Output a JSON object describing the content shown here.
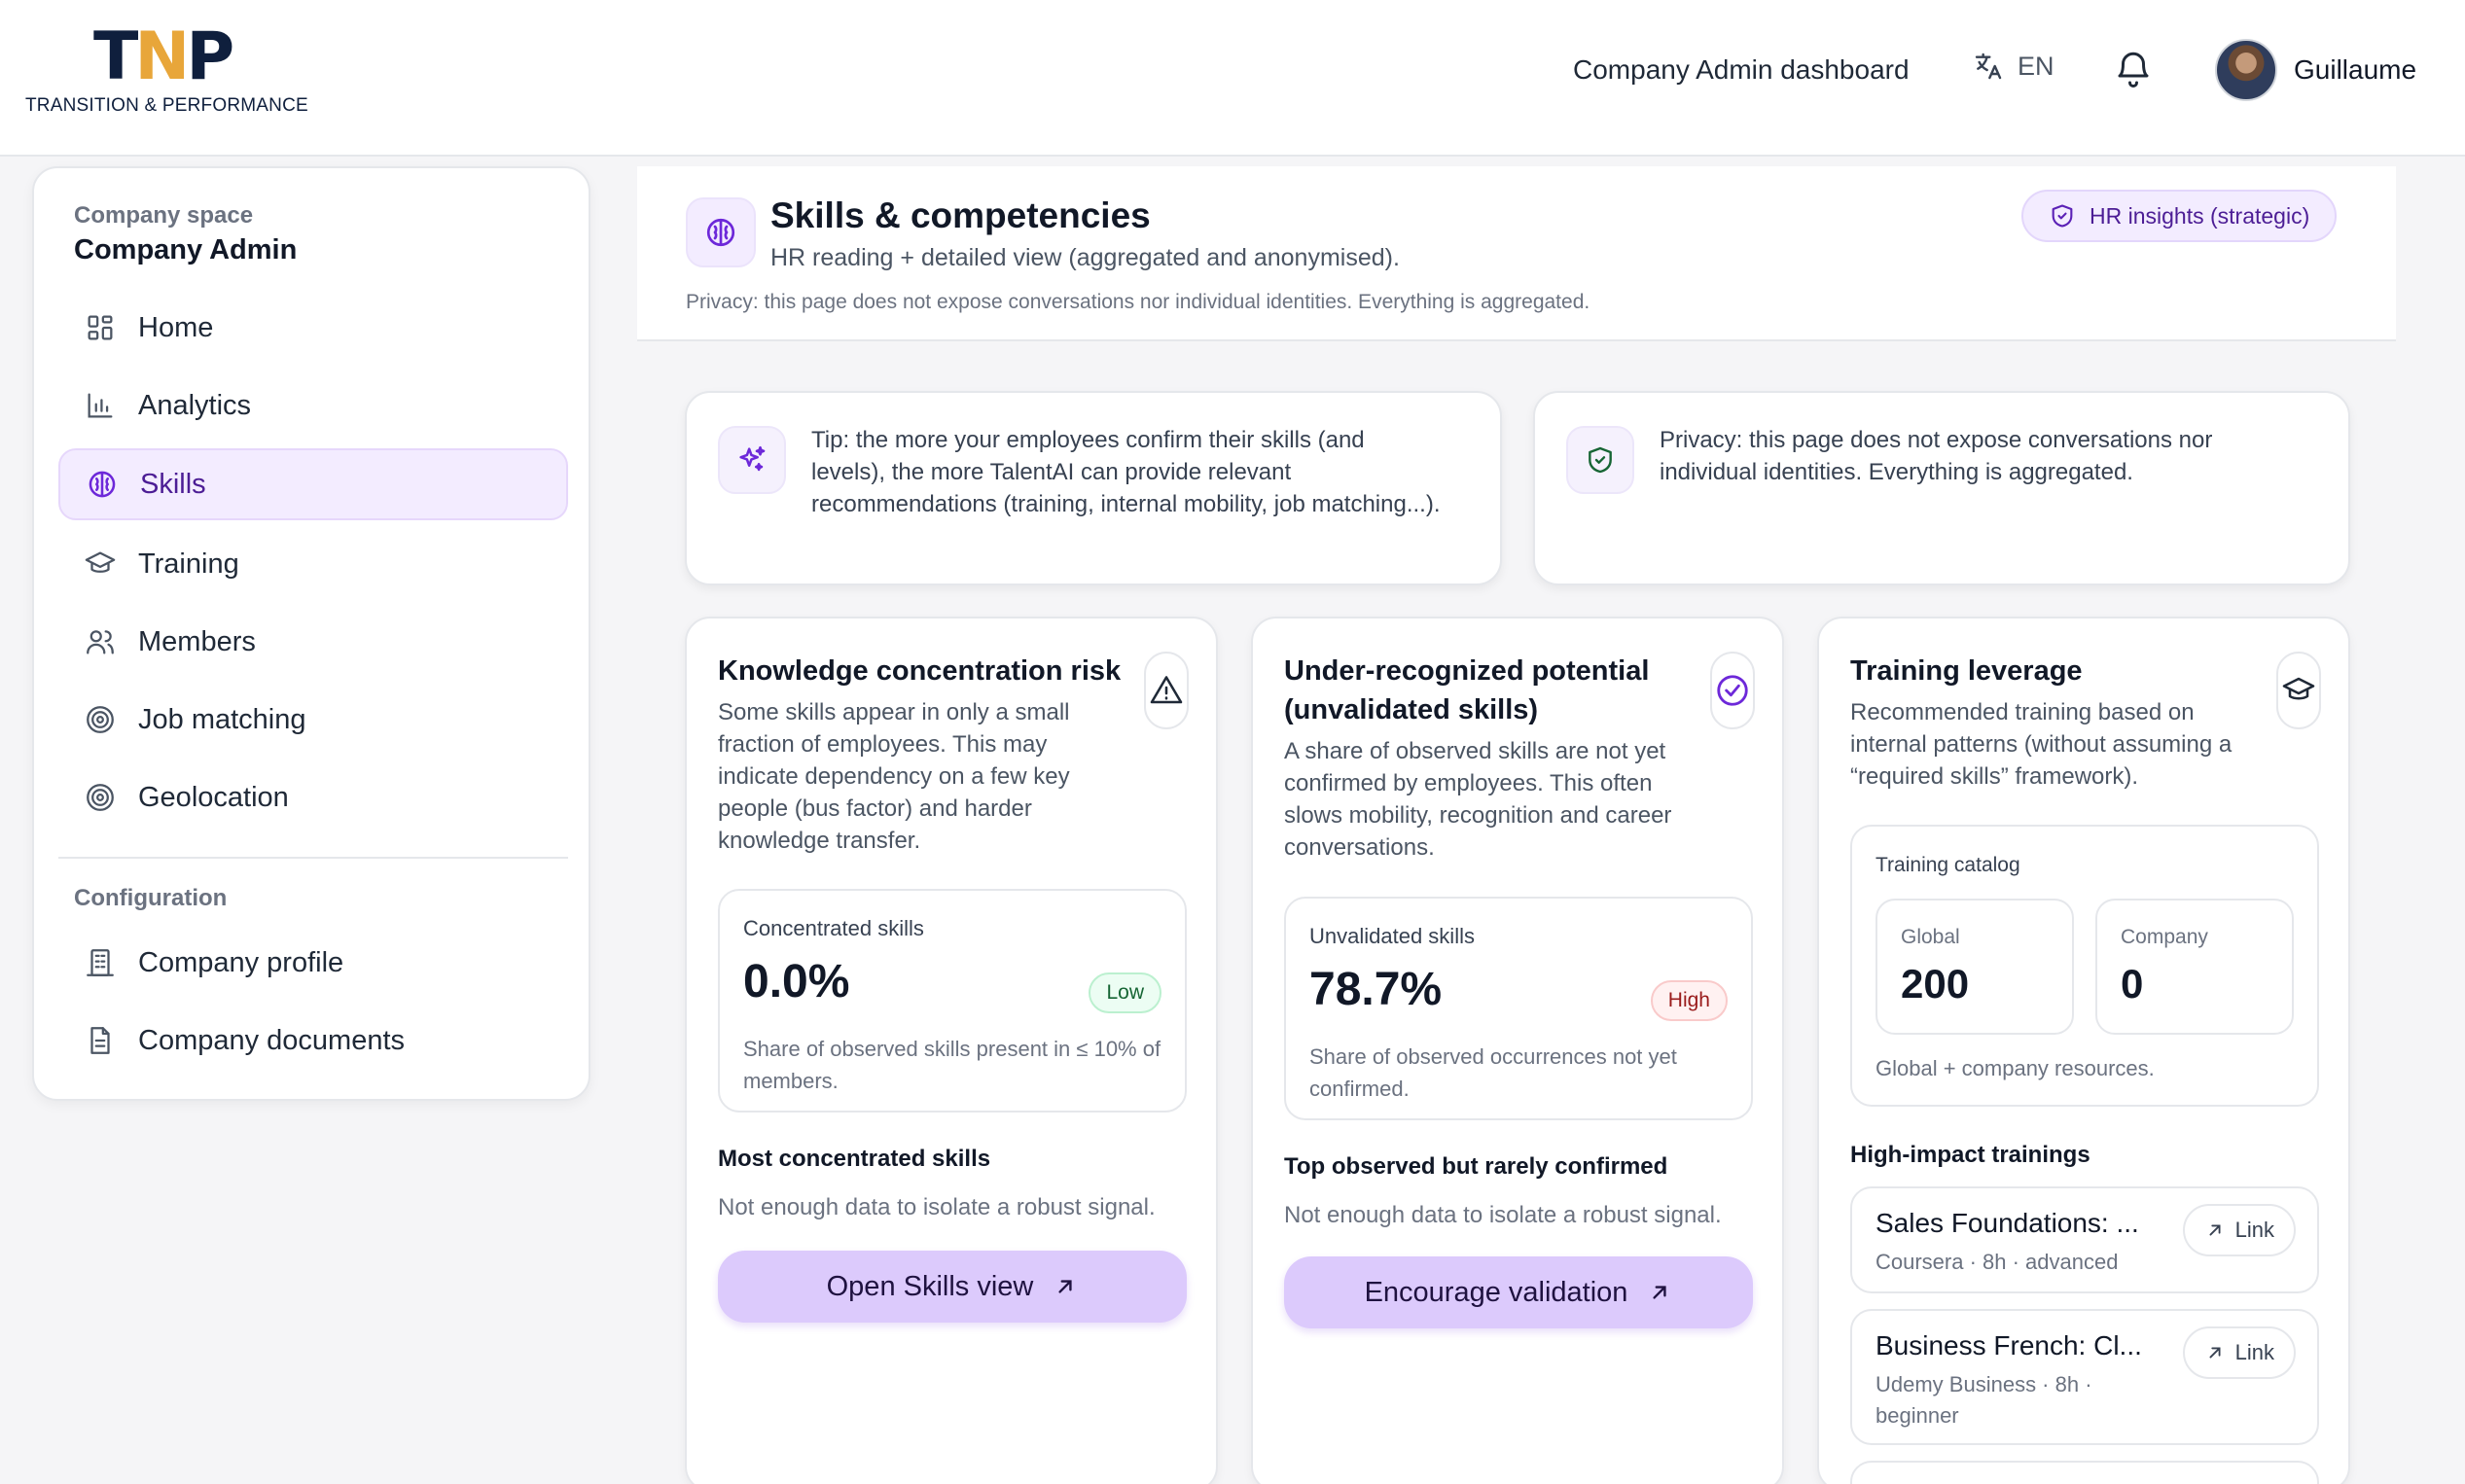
{
  "header": {
    "logo_mark": "TNP",
    "logo_text": "TRANSITION & PERFORMANCE",
    "dashboard_link": "Company Admin dashboard",
    "language": "EN",
    "user_name": "Guillaume"
  },
  "sidebar": {
    "space_label": "Company space",
    "company_name": "Company Admin",
    "items": [
      {
        "label": "Home",
        "icon": "grid-icon"
      },
      {
        "label": "Analytics",
        "icon": "bar-chart-icon"
      },
      {
        "label": "Skills",
        "icon": "brain-icon",
        "active": true
      },
      {
        "label": "Training",
        "icon": "graduation-cap-icon"
      },
      {
        "label": "Members",
        "icon": "users-icon"
      },
      {
        "label": "Job matching",
        "icon": "target-icon"
      },
      {
        "label": "Geolocation",
        "icon": "target-icon"
      }
    ],
    "config_label": "Configuration",
    "config_items": [
      {
        "label": "Company profile",
        "icon": "building-icon"
      },
      {
        "label": "Company documents",
        "icon": "document-icon"
      }
    ]
  },
  "page": {
    "title": "Skills & competencies",
    "subtitle": "HR reading + detailed view (aggregated and anonymised).",
    "privacy_note": "Privacy: this page does not expose conversations nor individual identities. Everything is aggregated.",
    "badge": "HR insights (strategic)"
  },
  "tips": {
    "tip": "Tip: the more your employees confirm their skills (and levels), the more TalentAI can provide relevant recommendations (training, internal mobility, job matching...).",
    "privacy": "Privacy: this page does not expose conversations nor individual identities. Everything is aggregated."
  },
  "cards": {
    "concentration": {
      "title": "Knowledge concentration risk",
      "description": "Some skills appear in only a small fraction of employees. This may indicate dependency on a few key people (bus factor) and harder knowledge transfer.",
      "metric_label": "Concentrated skills",
      "metric_value": "0.0%",
      "metric_level": "Low",
      "metric_help": "Share of observed skills present in ≤ 10% of members.",
      "section_title": "Most concentrated skills",
      "section_note": "Not enough data to isolate a robust signal.",
      "cta": "Open Skills view"
    },
    "potential": {
      "title": "Under-recognized potential (unvalidated skills)",
      "description": "A share of observed skills are not yet confirmed by employees. This often slows mobility, recognition and career conversations.",
      "metric_label": "Unvalidated skills",
      "metric_value": "78.7%",
      "metric_level": "High",
      "metric_help": "Share of observed occurrences not yet confirmed.",
      "section_title": "Top observed but rarely confirmed",
      "section_note": "Not enough data to isolate a robust signal.",
      "cta": "Encourage validation"
    },
    "training": {
      "title": "Training leverage",
      "description": "Recommended training based on internal patterns (without assuming a “required skills” framework).",
      "catalog_label": "Training catalog",
      "global_label": "Global",
      "global_value": "200",
      "company_label": "Company",
      "company_value": "0",
      "catalog_footer": "Global + company resources.",
      "section_title": "High-impact trainings",
      "items": [
        {
          "title": "Sales Foundations: ...",
          "meta": "Coursera · 8h · advanced",
          "link": "Link"
        },
        {
          "title": "Business French: Cl...",
          "meta": "Udemy Business · 8h · beginner",
          "link": "Link"
        }
      ]
    }
  }
}
